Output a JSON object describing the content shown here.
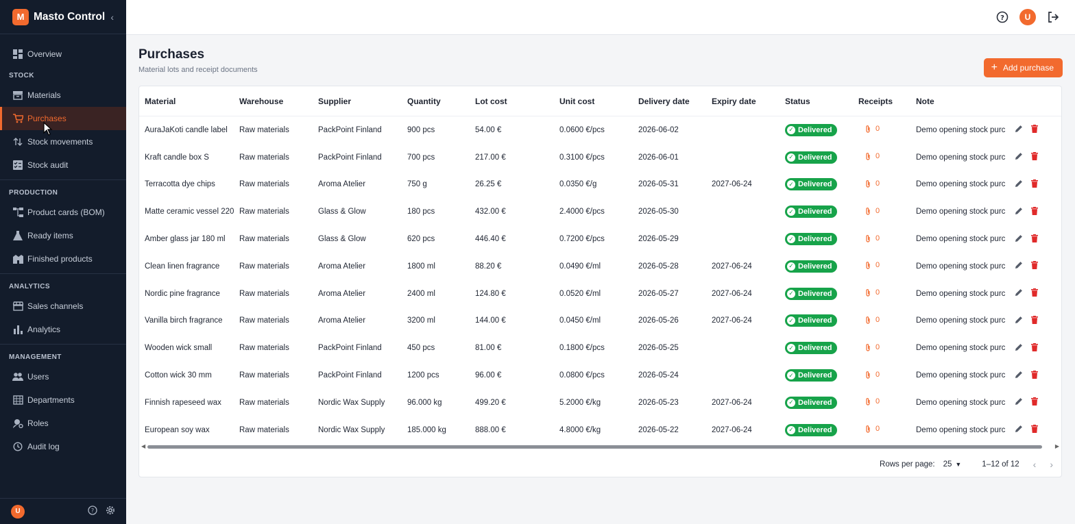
{
  "app": {
    "logo_letter": "M",
    "title": "Masto Control"
  },
  "sidebar": {
    "top_items": [
      {
        "label": "Overview",
        "icon": "dashboard-icon"
      }
    ],
    "sections": [
      {
        "title": "STOCK",
        "items": [
          {
            "label": "Materials",
            "icon": "archive-icon"
          },
          {
            "label": "Purchases",
            "icon": "cart-icon",
            "active": true
          },
          {
            "label": "Stock movements",
            "icon": "swap-vertical-icon"
          },
          {
            "label": "Stock audit",
            "icon": "checklist-icon"
          }
        ]
      },
      {
        "title": "PRODUCTION",
        "items": [
          {
            "label": "Product cards (BOM)",
            "icon": "hierarchy-icon"
          },
          {
            "label": "Ready items",
            "icon": "flask-icon"
          },
          {
            "label": "Finished products",
            "icon": "factory-icon"
          }
        ]
      },
      {
        "title": "ANALYTICS",
        "items": [
          {
            "label": "Sales channels",
            "icon": "store-icon"
          },
          {
            "label": "Analytics",
            "icon": "bar-chart-icon"
          }
        ]
      },
      {
        "title": "MANAGEMENT",
        "items": [
          {
            "label": "Users",
            "icon": "users-icon"
          },
          {
            "label": "Departments",
            "icon": "building-icon"
          },
          {
            "label": "Roles",
            "icon": "user-cog-icon"
          },
          {
            "label": "Audit log",
            "icon": "history-icon"
          }
        ]
      }
    ],
    "footer": {
      "avatar_letter": "U"
    }
  },
  "topbar": {
    "avatar_letter": "U"
  },
  "page": {
    "title": "Purchases",
    "subtitle": "Material lots and receipt documents",
    "add_label": "Add purchase"
  },
  "table": {
    "columns": [
      "Material",
      "Warehouse",
      "Supplier",
      "Quantity",
      "Lot cost",
      "Unit cost",
      "Delivery date",
      "Expiry date",
      "Status",
      "Receipts",
      "Note"
    ],
    "rows": [
      [
        "AuraJaKoti candle label",
        "Raw materials",
        "PackPoint Finland",
        "900 pcs",
        "54.00 €",
        "0.0600 €/pcs",
        "2026-06-02",
        "",
        "Delivered",
        "0",
        "Demo opening stock purc"
      ],
      [
        "Kraft candle box S",
        "Raw materials",
        "PackPoint Finland",
        "700 pcs",
        "217.00 €",
        "0.3100 €/pcs",
        "2026-06-01",
        "",
        "Delivered",
        "0",
        "Demo opening stock purc"
      ],
      [
        "Terracotta dye chips",
        "Raw materials",
        "Aroma Atelier",
        "750 g",
        "26.25 €",
        "0.0350 €/g",
        "2026-05-31",
        "2027-06-24",
        "Delivered",
        "0",
        "Demo opening stock purc"
      ],
      [
        "Matte ceramic vessel 220",
        "Raw materials",
        "Glass & Glow",
        "180 pcs",
        "432.00 €",
        "2.4000 €/pcs",
        "2026-05-30",
        "",
        "Delivered",
        "0",
        "Demo opening stock purc"
      ],
      [
        "Amber glass jar 180 ml",
        "Raw materials",
        "Glass & Glow",
        "620 pcs",
        "446.40 €",
        "0.7200 €/pcs",
        "2026-05-29",
        "",
        "Delivered",
        "0",
        "Demo opening stock purc"
      ],
      [
        "Clean linen fragrance",
        "Raw materials",
        "Aroma Atelier",
        "1800 ml",
        "88.20 €",
        "0.0490 €/ml",
        "2026-05-28",
        "2027-06-24",
        "Delivered",
        "0",
        "Demo opening stock purc"
      ],
      [
        "Nordic pine fragrance",
        "Raw materials",
        "Aroma Atelier",
        "2400 ml",
        "124.80 €",
        "0.0520 €/ml",
        "2026-05-27",
        "2027-06-24",
        "Delivered",
        "0",
        "Demo opening stock purc"
      ],
      [
        "Vanilla birch fragrance",
        "Raw materials",
        "Aroma Atelier",
        "3200 ml",
        "144.00 €",
        "0.0450 €/ml",
        "2026-05-26",
        "2027-06-24",
        "Delivered",
        "0",
        "Demo opening stock purc"
      ],
      [
        "Wooden wick small",
        "Raw materials",
        "PackPoint Finland",
        "450 pcs",
        "81.00 €",
        "0.1800 €/pcs",
        "2026-05-25",
        "",
        "Delivered",
        "0",
        "Demo opening stock purc"
      ],
      [
        "Cotton wick 30 mm",
        "Raw materials",
        "PackPoint Finland",
        "1200 pcs",
        "96.00 €",
        "0.0800 €/pcs",
        "2026-05-24",
        "",
        "Delivered",
        "0",
        "Demo opening stock purc"
      ],
      [
        "Finnish rapeseed wax",
        "Raw materials",
        "Nordic Wax Supply",
        "96.000 kg",
        "499.20 €",
        "5.2000 €/kg",
        "2026-05-23",
        "2027-06-24",
        "Delivered",
        "0",
        "Demo opening stock purc"
      ],
      [
        "European soy wax",
        "Raw materials",
        "Nordic Wax Supply",
        "185.000 kg",
        "888.00 €",
        "4.8000 €/kg",
        "2026-05-22",
        "2027-06-24",
        "Delivered",
        "0",
        "Demo opening stock purc"
      ]
    ]
  },
  "pagination": {
    "rows_per_page_label": "Rows per page:",
    "rows_per_page": "25",
    "range": "1–12 of 12"
  },
  "colors": {
    "accent": "#f26a2e",
    "sidebar": "#131c2b",
    "success": "#17a34a",
    "danger": "#e02a2a"
  }
}
